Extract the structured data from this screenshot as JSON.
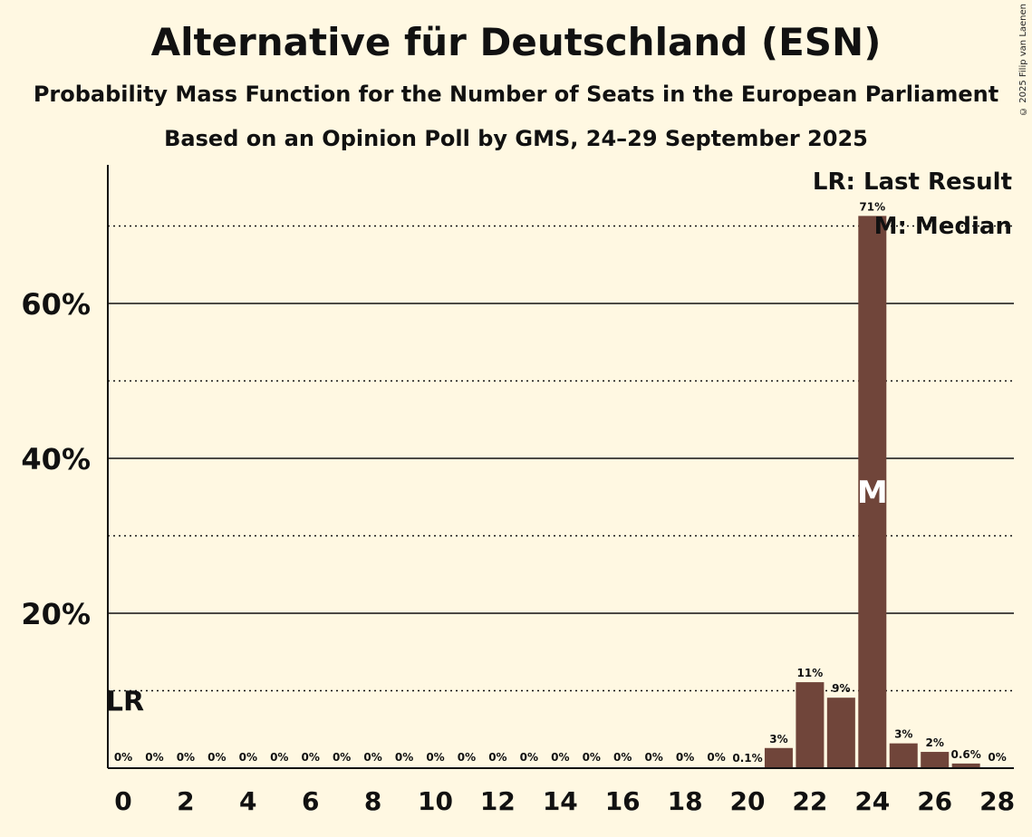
{
  "chart_data": {
    "type": "bar",
    "title": "Alternative für Deutschland (ESN)",
    "subtitle": "Probability Mass Function for the Number of Seats in the European Parliament",
    "subtitle2": "Based on an Opinion Poll by GMS, 24–29 September 2025",
    "copyright": "© 2025 Filip van Laenen",
    "x": [
      0,
      1,
      2,
      3,
      4,
      5,
      6,
      7,
      8,
      9,
      10,
      11,
      12,
      13,
      14,
      15,
      16,
      17,
      18,
      19,
      20,
      21,
      22,
      23,
      24,
      25,
      26,
      27,
      28
    ],
    "values": [
      0,
      0,
      0,
      0,
      0,
      0,
      0,
      0,
      0,
      0,
      0,
      0,
      0,
      0,
      0,
      0,
      0,
      0,
      0,
      0,
      0.1,
      2.6,
      11.1,
      9.1,
      71.3,
      3.2,
      2.1,
      0.6,
      0
    ],
    "labels": [
      "0%",
      "0%",
      "0%",
      "0%",
      "0%",
      "0%",
      "0%",
      "0%",
      "0%",
      "0%",
      "0%",
      "0%",
      "0%",
      "0%",
      "0%",
      "0%",
      "0%",
      "0%",
      "0%",
      "0%",
      "0.1%",
      "3%",
      "11%",
      "9%",
      "71%",
      "3%",
      "2%",
      "0.6%",
      "0%"
    ],
    "ylim": [
      0,
      78
    ],
    "y_ticks": [
      {
        "value": 20,
        "label": "20%"
      },
      {
        "value": 40,
        "label": "40%"
      },
      {
        "value": 60,
        "label": "60%"
      }
    ],
    "y_minor_gridlines": [
      10,
      30,
      50,
      70
    ],
    "x_tick_values": [
      0,
      2,
      4,
      6,
      8,
      10,
      12,
      14,
      16,
      18,
      20,
      22,
      24,
      26,
      28
    ],
    "last_result": {
      "x": 0,
      "value": 10,
      "label": "LR"
    },
    "median": {
      "x": 24,
      "label": "M"
    },
    "legend": {
      "position": "top-right",
      "items": [
        "LR: Last Result",
        "M: Median"
      ]
    },
    "bar_color": "#70453a",
    "background_color": "#fff8e2"
  }
}
